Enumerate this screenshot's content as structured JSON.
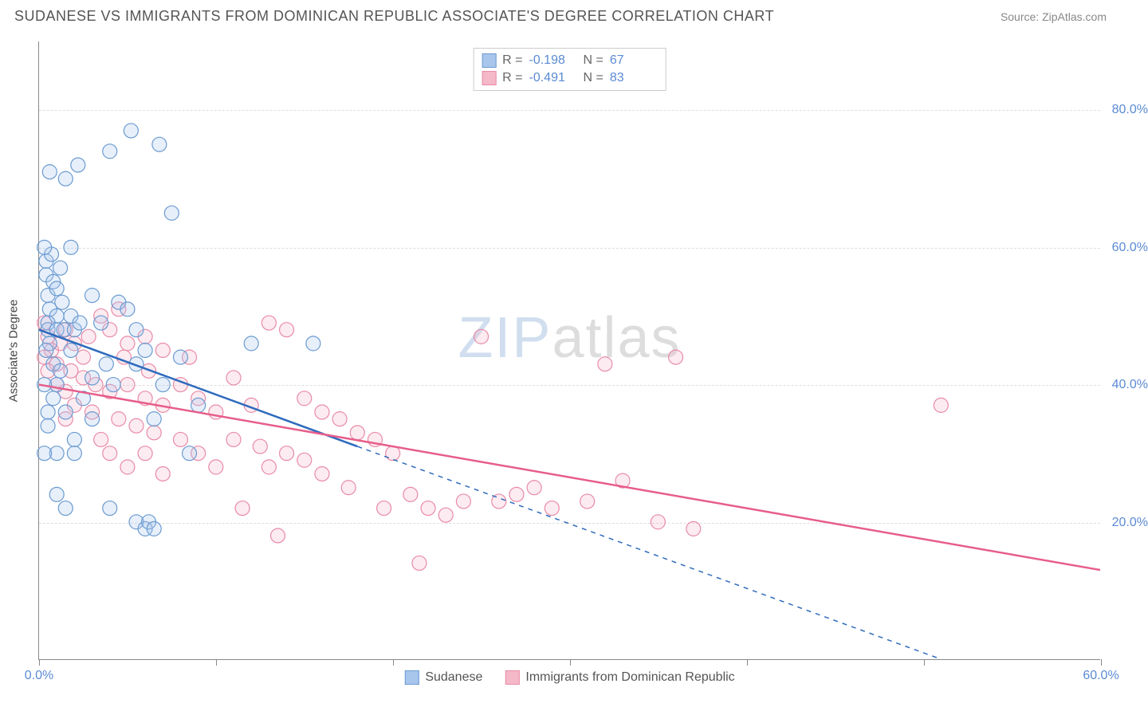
{
  "header": {
    "title": "SUDANESE VS IMMIGRANTS FROM DOMINICAN REPUBLIC ASSOCIATE'S DEGREE CORRELATION CHART",
    "source": "Source: ZipAtlas.com"
  },
  "chart": {
    "type": "scatter",
    "y_axis_label": "Associate's Degree",
    "xlim": [
      0,
      60
    ],
    "ylim": [
      0,
      90
    ],
    "x_ticks": [
      0,
      10,
      20,
      30,
      40,
      50,
      60
    ],
    "x_tick_labels": {
      "0": "0.0%",
      "60": "60.0%"
    },
    "y_grid": [
      20,
      40,
      60,
      80
    ],
    "y_tick_labels": {
      "20": "20.0%",
      "40": "40.0%",
      "60": "60.0%",
      "80": "80.0%"
    },
    "background_color": "#ffffff",
    "grid_color": "#dddddd",
    "axis_color": "#888888",
    "tick_label_color": "#5b8bd4",
    "marker_radius": 9,
    "marker_stroke_width": 1.2,
    "marker_fill_opacity": 0.28,
    "watermark": {
      "zip": "ZIP",
      "atlas": "atlas"
    },
    "series": [
      {
        "name": "Sudanese",
        "color_fill": "#a8c6ec",
        "color_stroke": "#6b9bd1",
        "R": "-0.198",
        "N": "67",
        "trend": {
          "x1": 0,
          "y1": 48,
          "x2_solid": 18,
          "y2_solid": 31,
          "x2": 51,
          "y2": 0,
          "color": "#2f6bbd",
          "width": 2.5
        },
        "points": [
          [
            0.4,
            58
          ],
          [
            0.4,
            56
          ],
          [
            0.7,
            59
          ],
          [
            0.8,
            55
          ],
          [
            0.5,
            53
          ],
          [
            0.6,
            51
          ],
          [
            1.0,
            54
          ],
          [
            1.2,
            57
          ],
          [
            1.0,
            50
          ],
          [
            1.3,
            52
          ],
          [
            0.5,
            49
          ],
          [
            0.5,
            48
          ],
          [
            0.6,
            46
          ],
          [
            1.0,
            48
          ],
          [
            1.4,
            48
          ],
          [
            1.8,
            50
          ],
          [
            2.0,
            48
          ],
          [
            2.3,
            49
          ],
          [
            0.4,
            45
          ],
          [
            0.8,
            43
          ],
          [
            1.2,
            42
          ],
          [
            1.8,
            45
          ],
          [
            1.0,
            40
          ],
          [
            0.8,
            38
          ],
          [
            0.5,
            36
          ],
          [
            0.5,
            34
          ],
          [
            1.5,
            36
          ],
          [
            2.5,
            38
          ],
          [
            3.0,
            41
          ],
          [
            3.8,
            43
          ],
          [
            4.2,
            40
          ],
          [
            5.5,
            43
          ],
          [
            3.0,
            35
          ],
          [
            2.0,
            32
          ],
          [
            2.0,
            30
          ],
          [
            1.0,
            30
          ],
          [
            0.3,
            30
          ],
          [
            1.0,
            24
          ],
          [
            1.5,
            22
          ],
          [
            8.0,
            44
          ],
          [
            12.0,
            46
          ],
          [
            15.5,
            46
          ],
          [
            8.5,
            30
          ],
          [
            4.0,
            22
          ],
          [
            5.5,
            20
          ],
          [
            6.0,
            19
          ],
          [
            6.2,
            20
          ],
          [
            6.5,
            19
          ],
          [
            0.6,
            71
          ],
          [
            1.5,
            70
          ],
          [
            2.2,
            72
          ],
          [
            4.0,
            74
          ],
          [
            5.2,
            77
          ],
          [
            6.8,
            75
          ],
          [
            7.5,
            65
          ],
          [
            4.5,
            52
          ],
          [
            3.0,
            53
          ],
          [
            3.5,
            49
          ],
          [
            5.0,
            51
          ],
          [
            5.5,
            48
          ],
          [
            6.0,
            45
          ],
          [
            7.0,
            40
          ],
          [
            9.0,
            37
          ],
          [
            6.5,
            35
          ],
          [
            0.3,
            60
          ],
          [
            1.8,
            60
          ],
          [
            0.3,
            40
          ]
        ]
      },
      {
        "name": "Immigrants from Dominican Republic",
        "color_fill": "#f5b8c9",
        "color_stroke": "#e98ba7",
        "R": "-0.491",
        "N": "83",
        "trend": {
          "x1": 0,
          "y1": 40,
          "x2_solid": 60,
          "y2_solid": 13,
          "x2": 60,
          "y2": 13,
          "color": "#e75d8a",
          "width": 2.5
        },
        "points": [
          [
            0.5,
            47
          ],
          [
            0.7,
            45
          ],
          [
            1.2,
            46
          ],
          [
            1.5,
            48
          ],
          [
            2.0,
            46
          ],
          [
            2.8,
            47
          ],
          [
            3.5,
            50
          ],
          [
            4.5,
            51
          ],
          [
            4.0,
            48
          ],
          [
            5.0,
            46
          ],
          [
            6.0,
            47
          ],
          [
            7.0,
            45
          ],
          [
            8.5,
            44
          ],
          [
            1.0,
            43
          ],
          [
            1.8,
            42
          ],
          [
            2.5,
            41
          ],
          [
            3.2,
            40
          ],
          [
            4.0,
            39
          ],
          [
            5.0,
            40
          ],
          [
            6.0,
            38
          ],
          [
            7.0,
            37
          ],
          [
            2.0,
            37
          ],
          [
            3.0,
            36
          ],
          [
            4.5,
            35
          ],
          [
            5.5,
            34
          ],
          [
            6.5,
            33
          ],
          [
            1.5,
            35
          ],
          [
            8.0,
            40
          ],
          [
            9.0,
            38
          ],
          [
            10.0,
            36
          ],
          [
            11.0,
            41
          ],
          [
            12.0,
            37
          ],
          [
            13.0,
            49
          ],
          [
            14.0,
            48
          ],
          [
            15.0,
            38
          ],
          [
            16.0,
            36
          ],
          [
            17.0,
            35
          ],
          [
            18.0,
            33
          ],
          [
            11.0,
            32
          ],
          [
            12.5,
            31
          ],
          [
            14.0,
            30
          ],
          [
            9.0,
            30
          ],
          [
            10.0,
            28
          ],
          [
            13.0,
            28
          ],
          [
            15.0,
            29
          ],
          [
            11.5,
            22
          ],
          [
            13.5,
            18
          ],
          [
            16.0,
            27
          ],
          [
            17.5,
            25
          ],
          [
            19.0,
            32
          ],
          [
            20.0,
            30
          ],
          [
            21.0,
            24
          ],
          [
            22.0,
            22
          ],
          [
            23.0,
            21
          ],
          [
            24.0,
            23
          ],
          [
            19.5,
            22
          ],
          [
            21.5,
            14
          ],
          [
            25.0,
            47
          ],
          [
            26.0,
            23
          ],
          [
            27.0,
            24
          ],
          [
            28.0,
            25
          ],
          [
            29.0,
            22
          ],
          [
            31.0,
            23
          ],
          [
            32.0,
            43
          ],
          [
            33.0,
            26
          ],
          [
            35.0,
            20
          ],
          [
            36.0,
            44
          ],
          [
            37.0,
            19
          ],
          [
            51.0,
            37
          ],
          [
            4.0,
            30
          ],
          [
            5.0,
            28
          ],
          [
            6.0,
            30
          ],
          [
            7.0,
            27
          ],
          [
            8.0,
            32
          ],
          [
            3.5,
            32
          ],
          [
            4.8,
            44
          ],
          [
            6.2,
            42
          ],
          [
            1.0,
            40
          ],
          [
            2.5,
            44
          ],
          [
            0.3,
            49
          ],
          [
            0.3,
            44
          ],
          [
            0.5,
            42
          ],
          [
            1.5,
            39
          ]
        ]
      }
    ],
    "legend_bottom": [
      {
        "label": "Sudanese",
        "fill": "#a8c6ec",
        "stroke": "#6b9bd1"
      },
      {
        "label": "Immigrants from Dominican Republic",
        "fill": "#f5b8c9",
        "stroke": "#e98ba7"
      }
    ]
  }
}
